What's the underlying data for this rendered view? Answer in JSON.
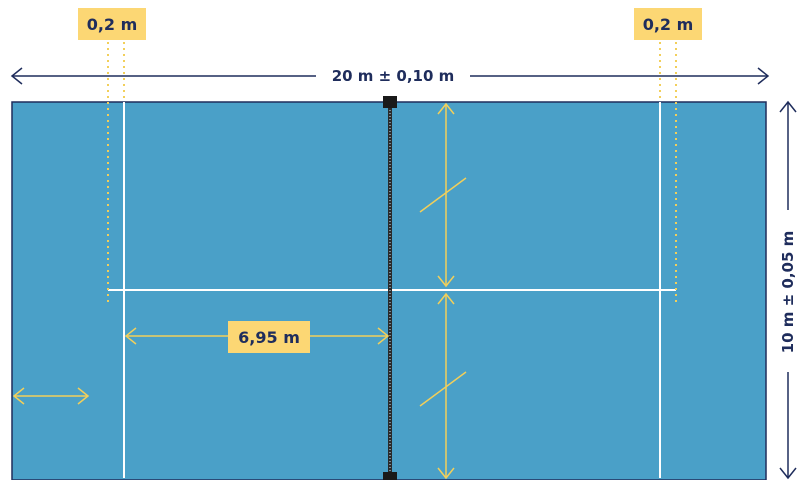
{
  "labels": {
    "left_strip_width": "0,2 m",
    "right_strip_width": "0,2 m",
    "total_length": "20 m ± 0,10 m",
    "total_width": "10 m ± 0,05 m",
    "service_line_distance": "6,95 m"
  },
  "colors": {
    "court": "#4aa0c8",
    "court_border": "#1f2d5c",
    "lines": "#ffffff",
    "dimension_accent": "#f2cf5a",
    "label_fill": "#fcd774",
    "text": "#1f2d5c",
    "net": "#2a2a2a"
  }
}
